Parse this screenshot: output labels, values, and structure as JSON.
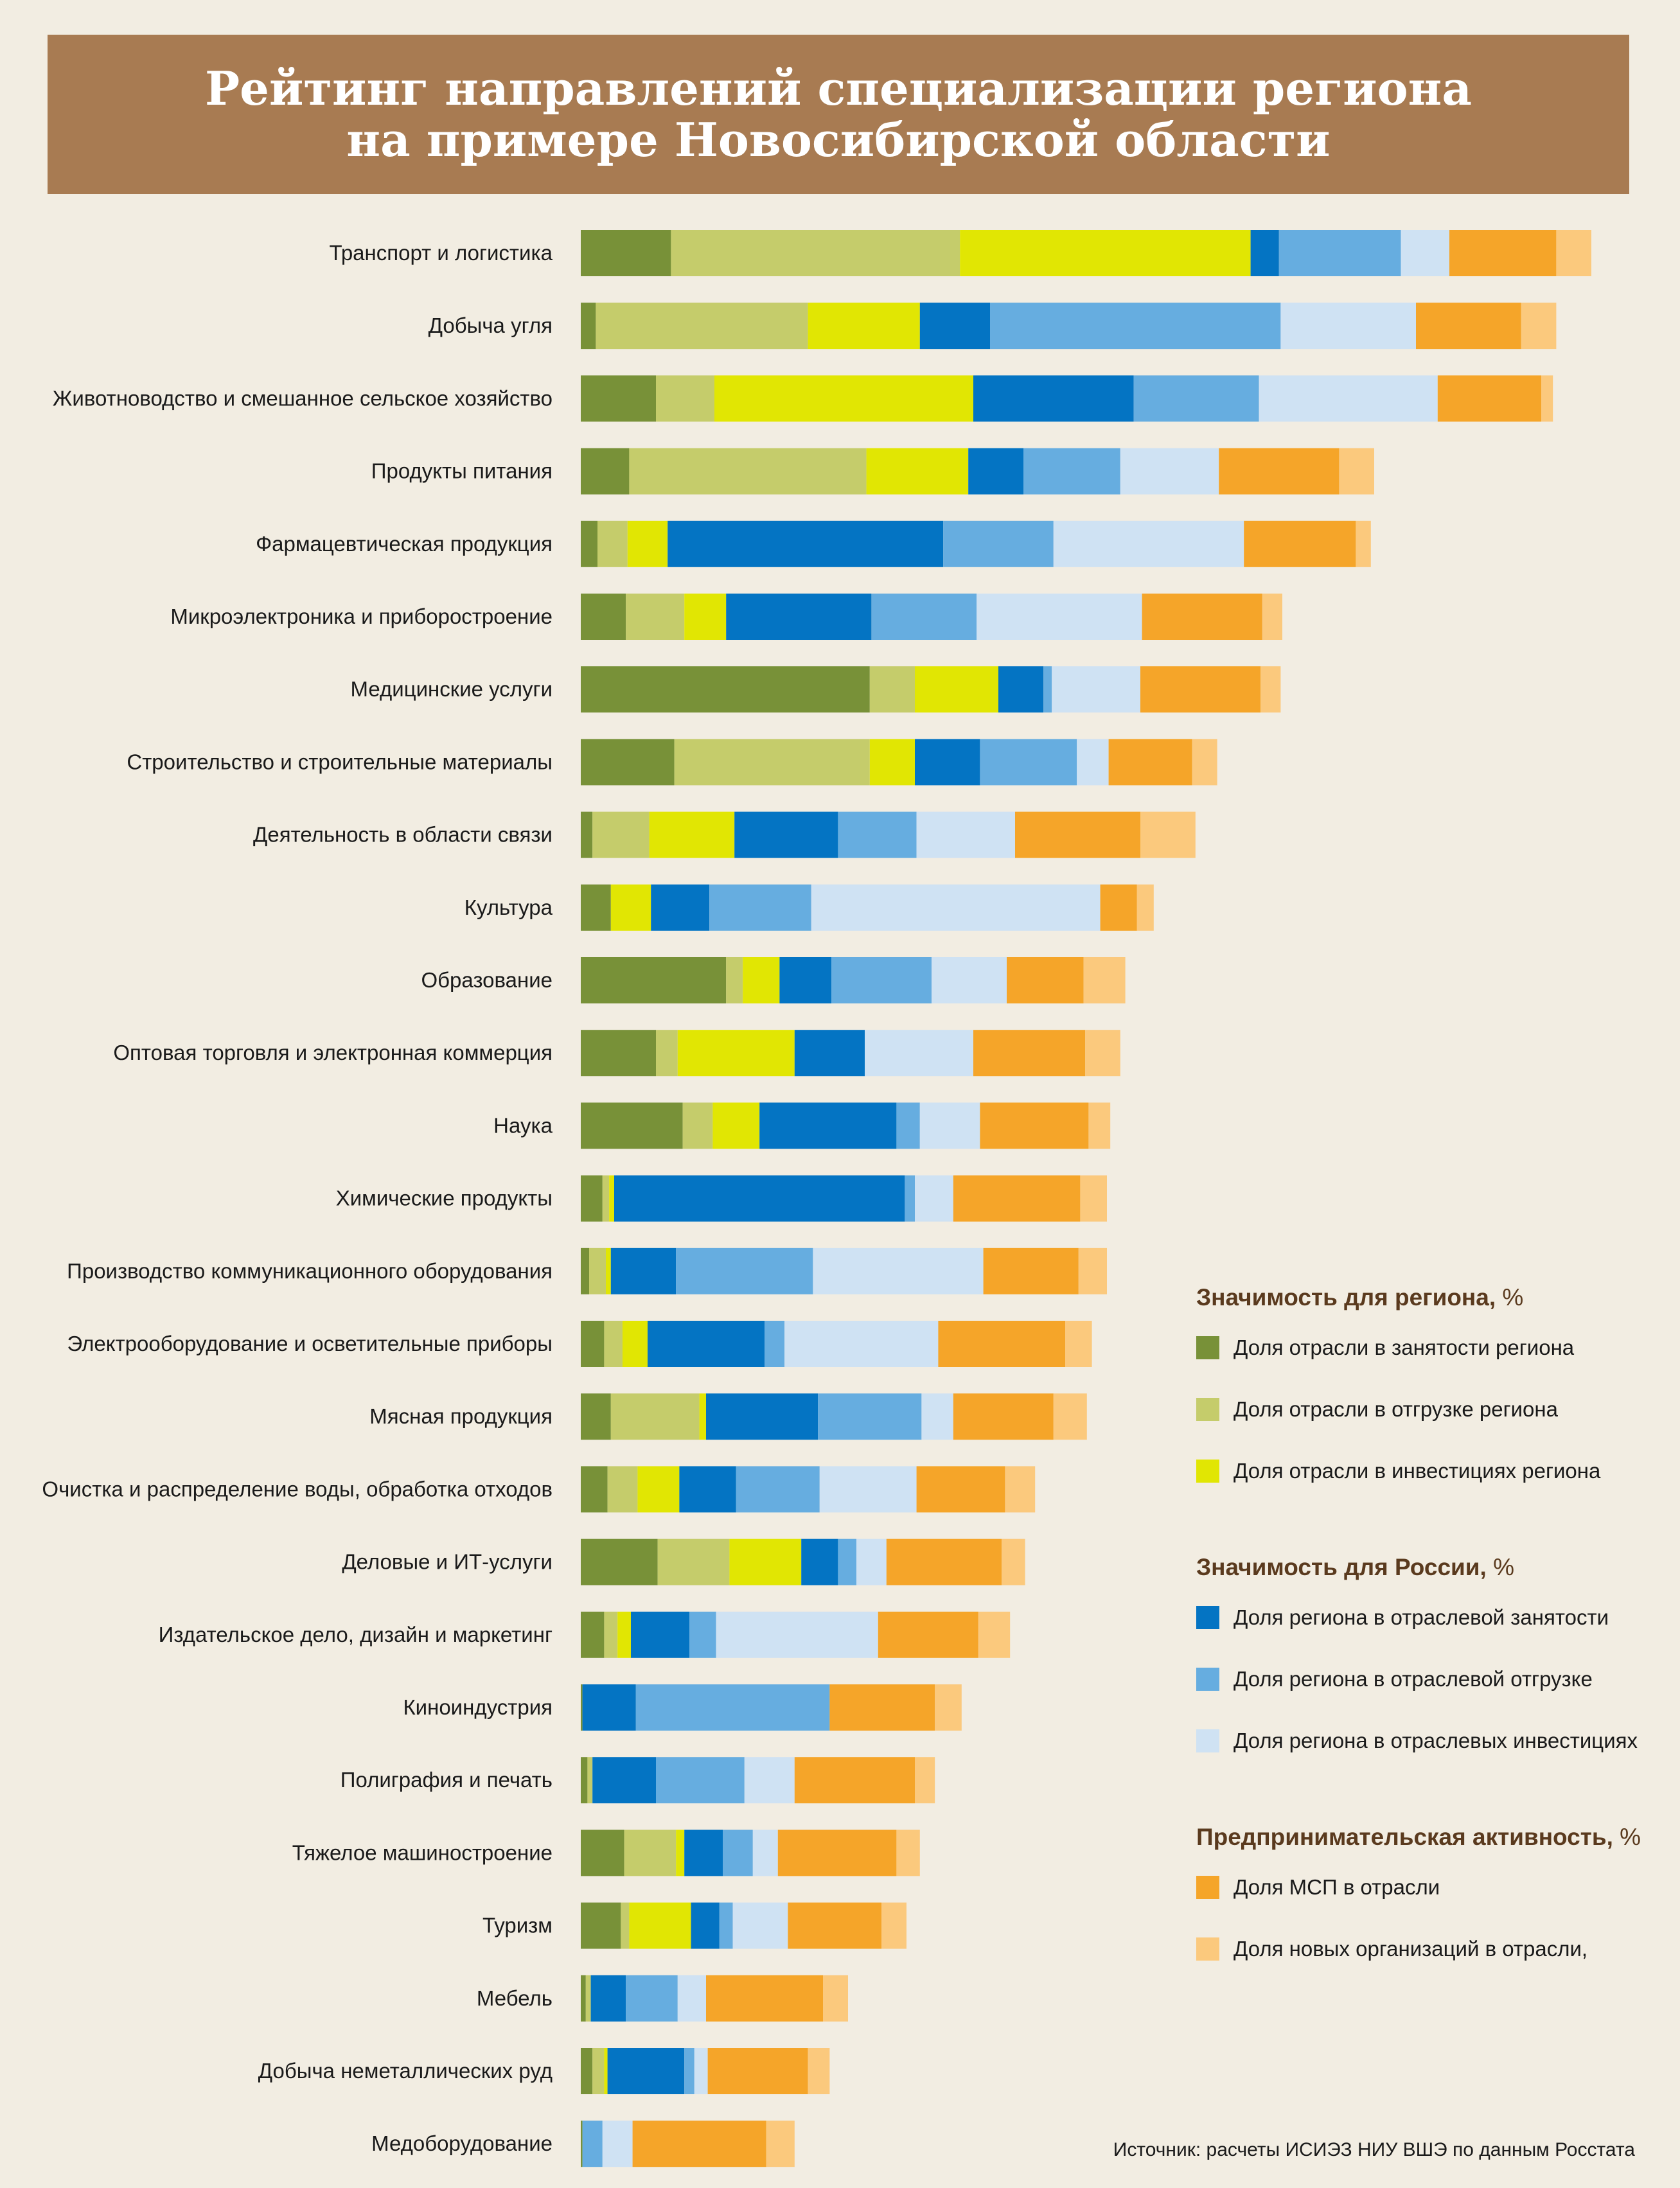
{
  "title": {
    "line1": "Рейтинг направлений специализации региона",
    "line2": "на примере Новосибирской области"
  },
  "chart_data": {
    "type": "bar",
    "orientation": "horizontal",
    "stacked": true,
    "categories": [
      "Транспорт и логистика",
      "Добыча угля",
      "Животноводство и смешанное сельское хозяйство",
      "Продукты питания",
      "Фармацевтическая продукция",
      "Микроэлектроника и приборостроение",
      "Медицинские услуги",
      "Строительство и строительные материалы",
      "Деятельность в области связи",
      "Культура",
      "Образование",
      "Оптовая торговля и электронная коммерция",
      "Наука",
      "Химические продукты",
      "Производство коммуникационного оборудования",
      "Электрооборудование и осветительные приборы",
      "Мясная продукция",
      "Очистка и распределение воды, обработка отходов",
      "Деловые и ИТ-услуги",
      "Издательское дело, дизайн и маркетинг",
      "Киноиндустрия",
      "Полиграфия и печать",
      "Тяжелое машиностроение",
      "Туризм",
      "Мебель",
      "Добыча неметаллических руд",
      "Медоборудование"
    ],
    "series": [
      {
        "name": "Доля отрасли в занятости региона",
        "color": "#789138",
        "values": [
          5.4,
          0.9,
          4.5,
          2.9,
          1.0,
          2.7,
          17.3,
          5.6,
          0.7,
          1.8,
          8.7,
          4.5,
          6.1,
          1.3,
          0.5,
          1.4,
          1.8,
          1.6,
          4.6,
          1.4,
          0.1,
          0.4,
          2.6,
          2.4,
          0.3,
          0.7,
          0.1
        ]
      },
      {
        "name": "Доля отрасли в отгрузке региона",
        "color": "#c5cc6b",
        "values": [
          17.3,
          12.7,
          3.5,
          14.2,
          1.8,
          3.5,
          2.7,
          11.7,
          3.4,
          0.0,
          1.0,
          1.3,
          1.8,
          0.4,
          1.0,
          1.1,
          5.3,
          1.8,
          4.3,
          0.8,
          0.0,
          0.3,
          3.1,
          0.5,
          0.3,
          0.7,
          0.0
        ]
      },
      {
        "name": "Доля отрасли в инвестициях региона",
        "color": "#e1e603",
        "values": [
          17.4,
          6.7,
          15.5,
          6.1,
          2.4,
          2.5,
          5.0,
          2.7,
          5.1,
          2.4,
          2.2,
          7.0,
          2.8,
          0.3,
          0.3,
          1.5,
          0.4,
          2.5,
          4.3,
          0.8,
          0.0,
          0.0,
          0.5,
          3.7,
          0.0,
          0.2,
          0.0
        ]
      },
      {
        "name": "Доля региона в отраслевой занятости",
        "color": "#0474c3",
        "values": [
          1.7,
          4.2,
          9.6,
          3.3,
          16.5,
          8.7,
          2.7,
          3.9,
          6.2,
          3.5,
          3.1,
          4.2,
          8.2,
          17.4,
          3.9,
          7.0,
          6.7,
          3.4,
          2.2,
          3.5,
          3.2,
          3.8,
          2.3,
          1.7,
          2.1,
          4.6,
          0.0
        ]
      },
      {
        "name": "Доля региона в отраслевой отгрузке",
        "color": "#66ade0",
        "values": [
          7.3,
          17.4,
          7.5,
          5.8,
          6.6,
          6.3,
          0.5,
          5.8,
          4.7,
          6.1,
          6.0,
          0.0,
          1.4,
          0.6,
          8.2,
          1.2,
          6.2,
          5.0,
          1.1,
          1.6,
          11.6,
          5.3,
          1.8,
          0.8,
          3.1,
          0.6,
          1.2
        ]
      },
      {
        "name": "Доля региона в отраслевых инвестициях",
        "color": "#cfe2f3",
        "values": [
          2.9,
          8.1,
          10.7,
          5.9,
          11.4,
          9.9,
          5.3,
          1.9,
          5.9,
          17.3,
          4.5,
          6.5,
          3.6,
          2.3,
          10.2,
          9.2,
          1.9,
          5.8,
          1.8,
          9.7,
          0.0,
          3.0,
          1.5,
          3.3,
          1.7,
          0.8,
          1.8
        ]
      },
      {
        "name": "Доля МСП в отрасли",
        "color": "#f5a529",
        "values": [
          6.4,
          6.3,
          6.2,
          7.2,
          6.7,
          7.2,
          7.2,
          5.0,
          7.5,
          2.2,
          4.6,
          6.7,
          6.5,
          7.6,
          5.7,
          7.6,
          6.0,
          5.3,
          6.9,
          6.0,
          6.3,
          7.2,
          7.1,
          5.6,
          7.0,
          6.0,
          8.0
        ]
      },
      {
        "name": "Доля новых организаций в отрасли,",
        "color": "#fbc97d",
        "values": [
          2.1,
          2.1,
          0.7,
          2.1,
          0.9,
          1.2,
          1.2,
          1.5,
          3.3,
          1.0,
          2.5,
          2.1,
          1.3,
          1.6,
          1.7,
          1.6,
          2.0,
          1.8,
          1.4,
          1.9,
          1.6,
          1.2,
          1.4,
          1.5,
          1.5,
          1.3,
          1.7
        ]
      }
    ]
  },
  "legend": {
    "groups": [
      {
        "title": "Значимость для региона,",
        "unit": " %",
        "items": [
          0,
          1,
          2
        ]
      },
      {
        "title": "Значимость для России,",
        "unit": " %",
        "items": [
          3,
          4,
          5
        ]
      },
      {
        "title": "Предпринимательская активность,",
        "unit": " %",
        "items": [
          6,
          7
        ]
      }
    ]
  },
  "source": "Источник: расчеты ИСИЭЗ НИУ ВШЭ по данным Росстата"
}
